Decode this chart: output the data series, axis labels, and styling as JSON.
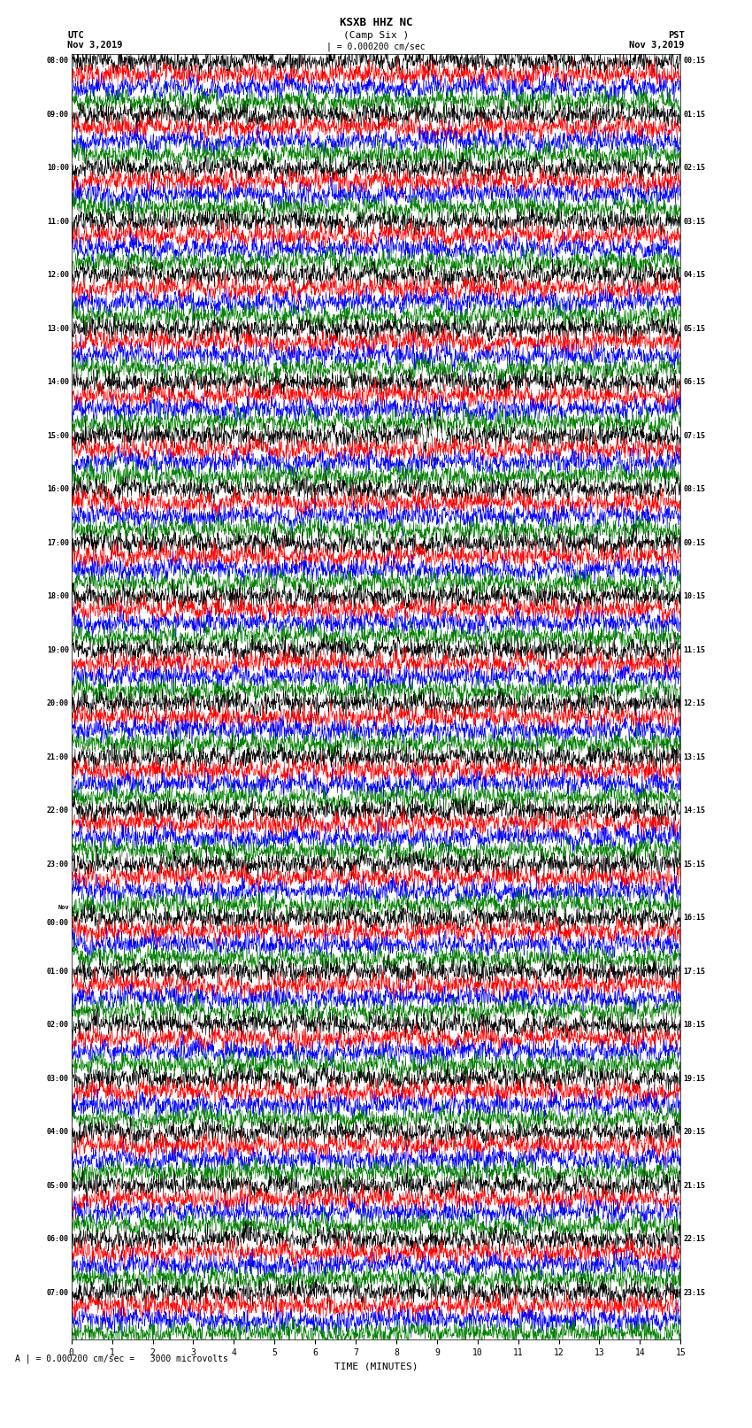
{
  "title_main": "KSXB HHZ NC",
  "title_sub": "(Camp Six )",
  "scale_text": "| = 0.000200 cm/sec",
  "label_utc": "UTC",
  "label_pst": "PST",
  "label_date_left": "Nov 3,2019",
  "label_date_right": "Nov 3,2019",
  "bottom_label": "A | = 0.000200 cm/sec =   3000 microvolts",
  "xlabel": "TIME (MINUTES)",
  "time_minutes": 15,
  "num_hour_groups": 24,
  "traces_per_group": 4,
  "colors": [
    "black",
    "red",
    "blue",
    "green"
  ],
  "left_times": [
    "08:00",
    "09:00",
    "10:00",
    "11:00",
    "12:00",
    "13:00",
    "14:00",
    "15:00",
    "16:00",
    "17:00",
    "18:00",
    "19:00",
    "20:00",
    "21:00",
    "22:00",
    "23:00",
    "Nov\n00:00",
    "01:00",
    "02:00",
    "03:00",
    "04:00",
    "05:00",
    "06:00",
    "07:00"
  ],
  "right_times": [
    "00:15",
    "01:15",
    "02:15",
    "03:15",
    "04:15",
    "05:15",
    "06:15",
    "07:15",
    "08:15",
    "09:15",
    "10:15",
    "11:15",
    "12:15",
    "13:15",
    "14:15",
    "15:15",
    "16:15",
    "17:15",
    "18:15",
    "19:15",
    "20:15",
    "21:15",
    "22:15",
    "23:15"
  ],
  "bg_color": "white",
  "figwidth": 8.5,
  "figheight": 16.13,
  "dpi": 100,
  "n_points": 2000,
  "trace_scale": 0.4,
  "special_event_row": 24,
  "special_event_col": 1,
  "special_event_time": 7.8,
  "noise_seed": 12345
}
